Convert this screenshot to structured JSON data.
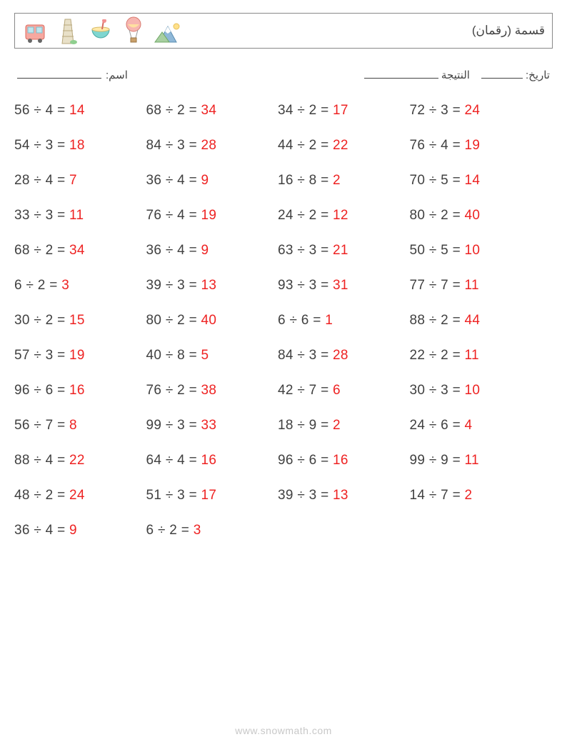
{
  "header": {
    "title": "(قسمة (رقمان",
    "icons": [
      "bus-icon",
      "tower-icon",
      "drink-icon",
      "balloon-icon",
      "mountain-icon"
    ]
  },
  "info": {
    "name_label": ":اسم",
    "score_label": "النتيجة",
    "date_label": ":تاريخ"
  },
  "styling": {
    "page_bg": "#ffffff",
    "border_color": "#888888",
    "text_color": "#404040",
    "answer_color": "#ee2222",
    "footer_color": "#c8c8c8",
    "operator": "÷",
    "equals": "=",
    "cell_fontsize": 19,
    "columns": 4,
    "row_gap": 27
  },
  "problems": [
    [
      {
        "a": 56,
        "b": 4,
        "r": 14
      },
      {
        "a": 68,
        "b": 2,
        "r": 34
      },
      {
        "a": 34,
        "b": 2,
        "r": 17
      },
      {
        "a": 72,
        "b": 3,
        "r": 24
      }
    ],
    [
      {
        "a": 54,
        "b": 3,
        "r": 18
      },
      {
        "a": 84,
        "b": 3,
        "r": 28
      },
      {
        "a": 44,
        "b": 2,
        "r": 22
      },
      {
        "a": 76,
        "b": 4,
        "r": 19
      }
    ],
    [
      {
        "a": 28,
        "b": 4,
        "r": 7
      },
      {
        "a": 36,
        "b": 4,
        "r": 9
      },
      {
        "a": 16,
        "b": 8,
        "r": 2
      },
      {
        "a": 70,
        "b": 5,
        "r": 14
      }
    ],
    [
      {
        "a": 33,
        "b": 3,
        "r": 11
      },
      {
        "a": 76,
        "b": 4,
        "r": 19
      },
      {
        "a": 24,
        "b": 2,
        "r": 12
      },
      {
        "a": 80,
        "b": 2,
        "r": 40
      }
    ],
    [
      {
        "a": 68,
        "b": 2,
        "r": 34
      },
      {
        "a": 36,
        "b": 4,
        "r": 9
      },
      {
        "a": 63,
        "b": 3,
        "r": 21
      },
      {
        "a": 50,
        "b": 5,
        "r": 10
      }
    ],
    [
      {
        "a": 6,
        "b": 2,
        "r": 3
      },
      {
        "a": 39,
        "b": 3,
        "r": 13
      },
      {
        "a": 93,
        "b": 3,
        "r": 31
      },
      {
        "a": 77,
        "b": 7,
        "r": 11
      }
    ],
    [
      {
        "a": 30,
        "b": 2,
        "r": 15
      },
      {
        "a": 80,
        "b": 2,
        "r": 40
      },
      {
        "a": 6,
        "b": 6,
        "r": 1
      },
      {
        "a": 88,
        "b": 2,
        "r": 44
      }
    ],
    [
      {
        "a": 57,
        "b": 3,
        "r": 19
      },
      {
        "a": 40,
        "b": 8,
        "r": 5
      },
      {
        "a": 84,
        "b": 3,
        "r": 28
      },
      {
        "a": 22,
        "b": 2,
        "r": 11
      }
    ],
    [
      {
        "a": 96,
        "b": 6,
        "r": 16
      },
      {
        "a": 76,
        "b": 2,
        "r": 38
      },
      {
        "a": 42,
        "b": 7,
        "r": 6
      },
      {
        "a": 30,
        "b": 3,
        "r": 10
      }
    ],
    [
      {
        "a": 56,
        "b": 7,
        "r": 8
      },
      {
        "a": 99,
        "b": 3,
        "r": 33
      },
      {
        "a": 18,
        "b": 9,
        "r": 2
      },
      {
        "a": 24,
        "b": 6,
        "r": 4
      }
    ],
    [
      {
        "a": 88,
        "b": 4,
        "r": 22
      },
      {
        "a": 64,
        "b": 4,
        "r": 16
      },
      {
        "a": 96,
        "b": 6,
        "r": 16
      },
      {
        "a": 99,
        "b": 9,
        "r": 11
      }
    ],
    [
      {
        "a": 48,
        "b": 2,
        "r": 24
      },
      {
        "a": 51,
        "b": 3,
        "r": 17
      },
      {
        "a": 39,
        "b": 3,
        "r": 13
      },
      {
        "a": 14,
        "b": 7,
        "r": 2
      }
    ],
    [
      {
        "a": 36,
        "b": 4,
        "r": 9
      },
      {
        "a": 6,
        "b": 2,
        "r": 3
      }
    ]
  ],
  "footer": {
    "url": "www.snowmath.com"
  }
}
